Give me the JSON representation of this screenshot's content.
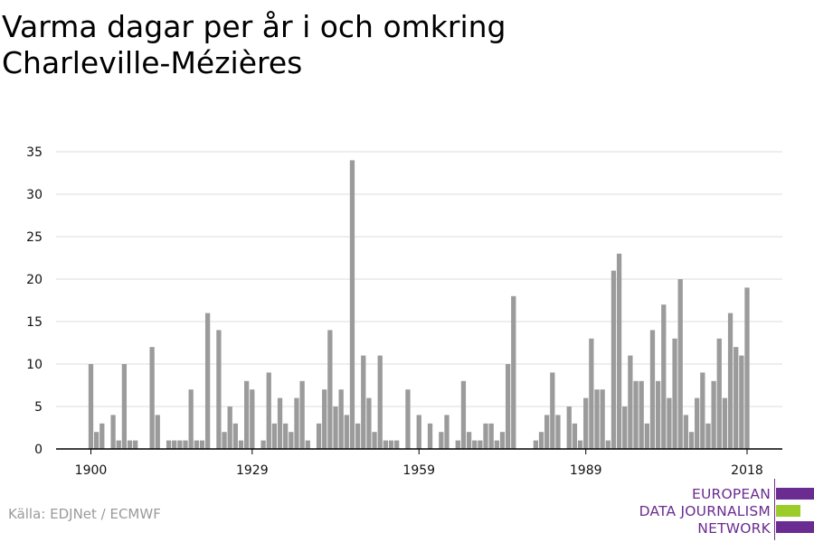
{
  "title": "Varma dagar per år i och omkring Charleville-Mézières",
  "source": "Källa: EDJNet / ECMWF",
  "logo": {
    "lines": [
      "EUROPEAN",
      "DATA JOURNALISM",
      "NETWORK"
    ],
    "colors": {
      "purple": "#6a2c91",
      "green": "#9ccc2a"
    }
  },
  "colors": {
    "bar": "#9b9b9b",
    "grid": "#dcdcdc",
    "axis": "#000000"
  },
  "chart_data": {
    "type": "bar",
    "title": "Varma dagar per år i och omkring Charleville-Mézières",
    "xlabel": "",
    "ylabel": "",
    "ylim": [
      0,
      35
    ],
    "yticks": [
      0,
      5,
      10,
      15,
      20,
      25,
      30,
      35
    ],
    "xticks": [
      1900,
      1929,
      1959,
      1989,
      2018
    ],
    "grid": true,
    "x": [
      1900,
      1901,
      1902,
      1903,
      1904,
      1905,
      1906,
      1907,
      1908,
      1909,
      1910,
      1911,
      1912,
      1913,
      1914,
      1915,
      1916,
      1917,
      1918,
      1919,
      1920,
      1921,
      1922,
      1923,
      1924,
      1925,
      1926,
      1927,
      1928,
      1929,
      1930,
      1931,
      1932,
      1933,
      1934,
      1935,
      1936,
      1937,
      1938,
      1939,
      1940,
      1941,
      1942,
      1943,
      1944,
      1945,
      1946,
      1947,
      1948,
      1949,
      1950,
      1951,
      1952,
      1953,
      1954,
      1955,
      1956,
      1957,
      1958,
      1959,
      1960,
      1961,
      1962,
      1963,
      1964,
      1965,
      1966,
      1967,
      1968,
      1969,
      1970,
      1971,
      1972,
      1973,
      1974,
      1975,
      1976,
      1977,
      1978,
      1979,
      1980,
      1981,
      1982,
      1983,
      1984,
      1985,
      1986,
      1987,
      1988,
      1989,
      1990,
      1991,
      1992,
      1993,
      1994,
      1995,
      1996,
      1997,
      1998,
      1999,
      2000,
      2001,
      2002,
      2003,
      2004,
      2005,
      2006,
      2007,
      2008,
      2009,
      2010,
      2011,
      2012,
      2013,
      2014,
      2015,
      2016,
      2017,
      2018
    ],
    "values": [
      10,
      2,
      3,
      0,
      4,
      1,
      10,
      1,
      1,
      0,
      0,
      12,
      4,
      0,
      1,
      1,
      1,
      1,
      7,
      1,
      1,
      16,
      0,
      14,
      2,
      5,
      3,
      1,
      8,
      7,
      0,
      1,
      9,
      3,
      6,
      3,
      2,
      6,
      8,
      1,
      0,
      3,
      7,
      14,
      5,
      7,
      4,
      34,
      3,
      11,
      6,
      2,
      11,
      1,
      1,
      1,
      0,
      7,
      0,
      4,
      0,
      3,
      0,
      2,
      4,
      0,
      1,
      8,
      2,
      1,
      1,
      3,
      3,
      1,
      2,
      10,
      18,
      0,
      0,
      0,
      1,
      2,
      4,
      9,
      4,
      0,
      5,
      3,
      1,
      6,
      13,
      7,
      7,
      1,
      21,
      23,
      5,
      11,
      8,
      8,
      3,
      14,
      8,
      17,
      6,
      13,
      20,
      4,
      2,
      6,
      9,
      3,
      8,
      13,
      6,
      16,
      12,
      11,
      19
    ]
  }
}
